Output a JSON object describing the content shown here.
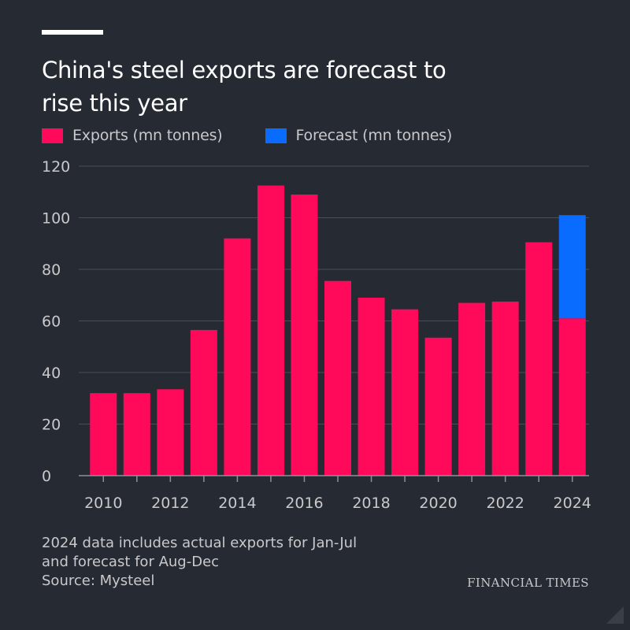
{
  "header": {
    "title_line1": "China's steel exports are forecast to",
    "title_line2": "rise this year"
  },
  "legend": {
    "exports_label": "Exports (mn tonnes)",
    "forecast_label": "Forecast (mn tonnes)"
  },
  "colors": {
    "exports": "#ff0a5a",
    "forecast": "#0a6cff",
    "gridline": "#4a4e57",
    "axis": "#8e9099"
  },
  "chart_data": {
    "type": "bar",
    "stacked": true,
    "categories": [
      "2010",
      "2011",
      "2012",
      "2013",
      "2014",
      "2015",
      "2016",
      "2017",
      "2018",
      "2019",
      "2020",
      "2021",
      "2022",
      "2023",
      "2024"
    ],
    "x_tick_labels": [
      "2010",
      "2012",
      "2014",
      "2016",
      "2018",
      "2020",
      "2022",
      "2024"
    ],
    "series": [
      {
        "name": "Exports (mn tonnes)",
        "values": [
          32,
          32,
          33.5,
          56.5,
          92,
          112.5,
          109,
          75.5,
          69,
          64.5,
          53.5,
          67,
          67.5,
          90.5,
          61
        ]
      },
      {
        "name": "Forecast (mn tonnes)",
        "values": [
          0,
          0,
          0,
          0,
          0,
          0,
          0,
          0,
          0,
          0,
          0,
          0,
          0,
          0,
          40
        ]
      }
    ],
    "ylim": [
      0,
      120
    ],
    "y_ticks": [
      0,
      20,
      40,
      60,
      80,
      100,
      120
    ],
    "grid": true,
    "legend_position": "top-left"
  },
  "notes": {
    "line1": "2024 data includes actual exports for Jan-Jul",
    "line2": "and forecast for Aug-Dec",
    "source": "Source: Mysteel"
  },
  "brand": "FINANCIAL TIMES"
}
